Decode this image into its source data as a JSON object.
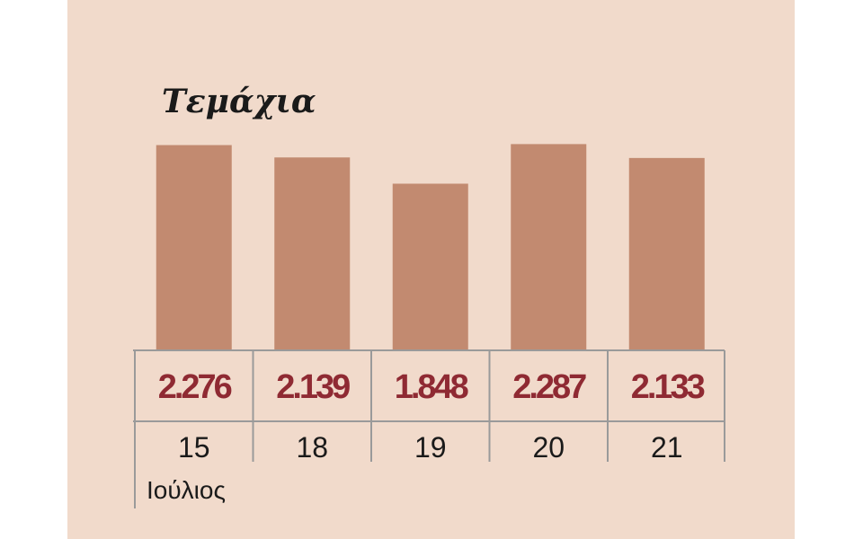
{
  "chart_data": {
    "type": "bar",
    "title": "Τεμάχια",
    "categories": [
      "15",
      "18",
      "19",
      "20",
      "21"
    ],
    "values": [
      2276,
      2139,
      1848,
      2287,
      2133
    ],
    "value_labels": [
      "2.276",
      "2.139",
      "1.848",
      "2.287",
      "2.133"
    ],
    "x_group_label": "Ιούλιος",
    "xlabel": "",
    "ylabel": "",
    "ylim": [
      0,
      2550
    ],
    "grid": false,
    "legend": "none",
    "colors": {
      "background": "#f1dacb",
      "bar": "#c28a70",
      "value_text": "#8f2a33",
      "category_text": "#1a1a1a",
      "rule": "#9a9a9a"
    }
  }
}
